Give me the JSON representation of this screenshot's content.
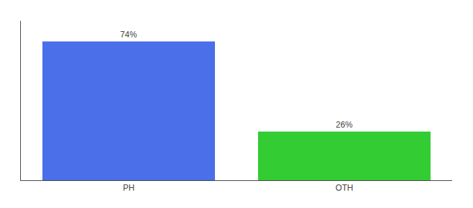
{
  "chart_data": {
    "type": "bar",
    "categories": [
      "PH",
      "OTH"
    ],
    "values": [
      74,
      26
    ],
    "value_labels": [
      "74%",
      "26%"
    ],
    "colors": [
      "#4a6fe8",
      "#33cc33"
    ],
    "ylim": [
      0,
      85
    ],
    "data_labels": true,
    "tick_labels": "x",
    "grid": false
  }
}
